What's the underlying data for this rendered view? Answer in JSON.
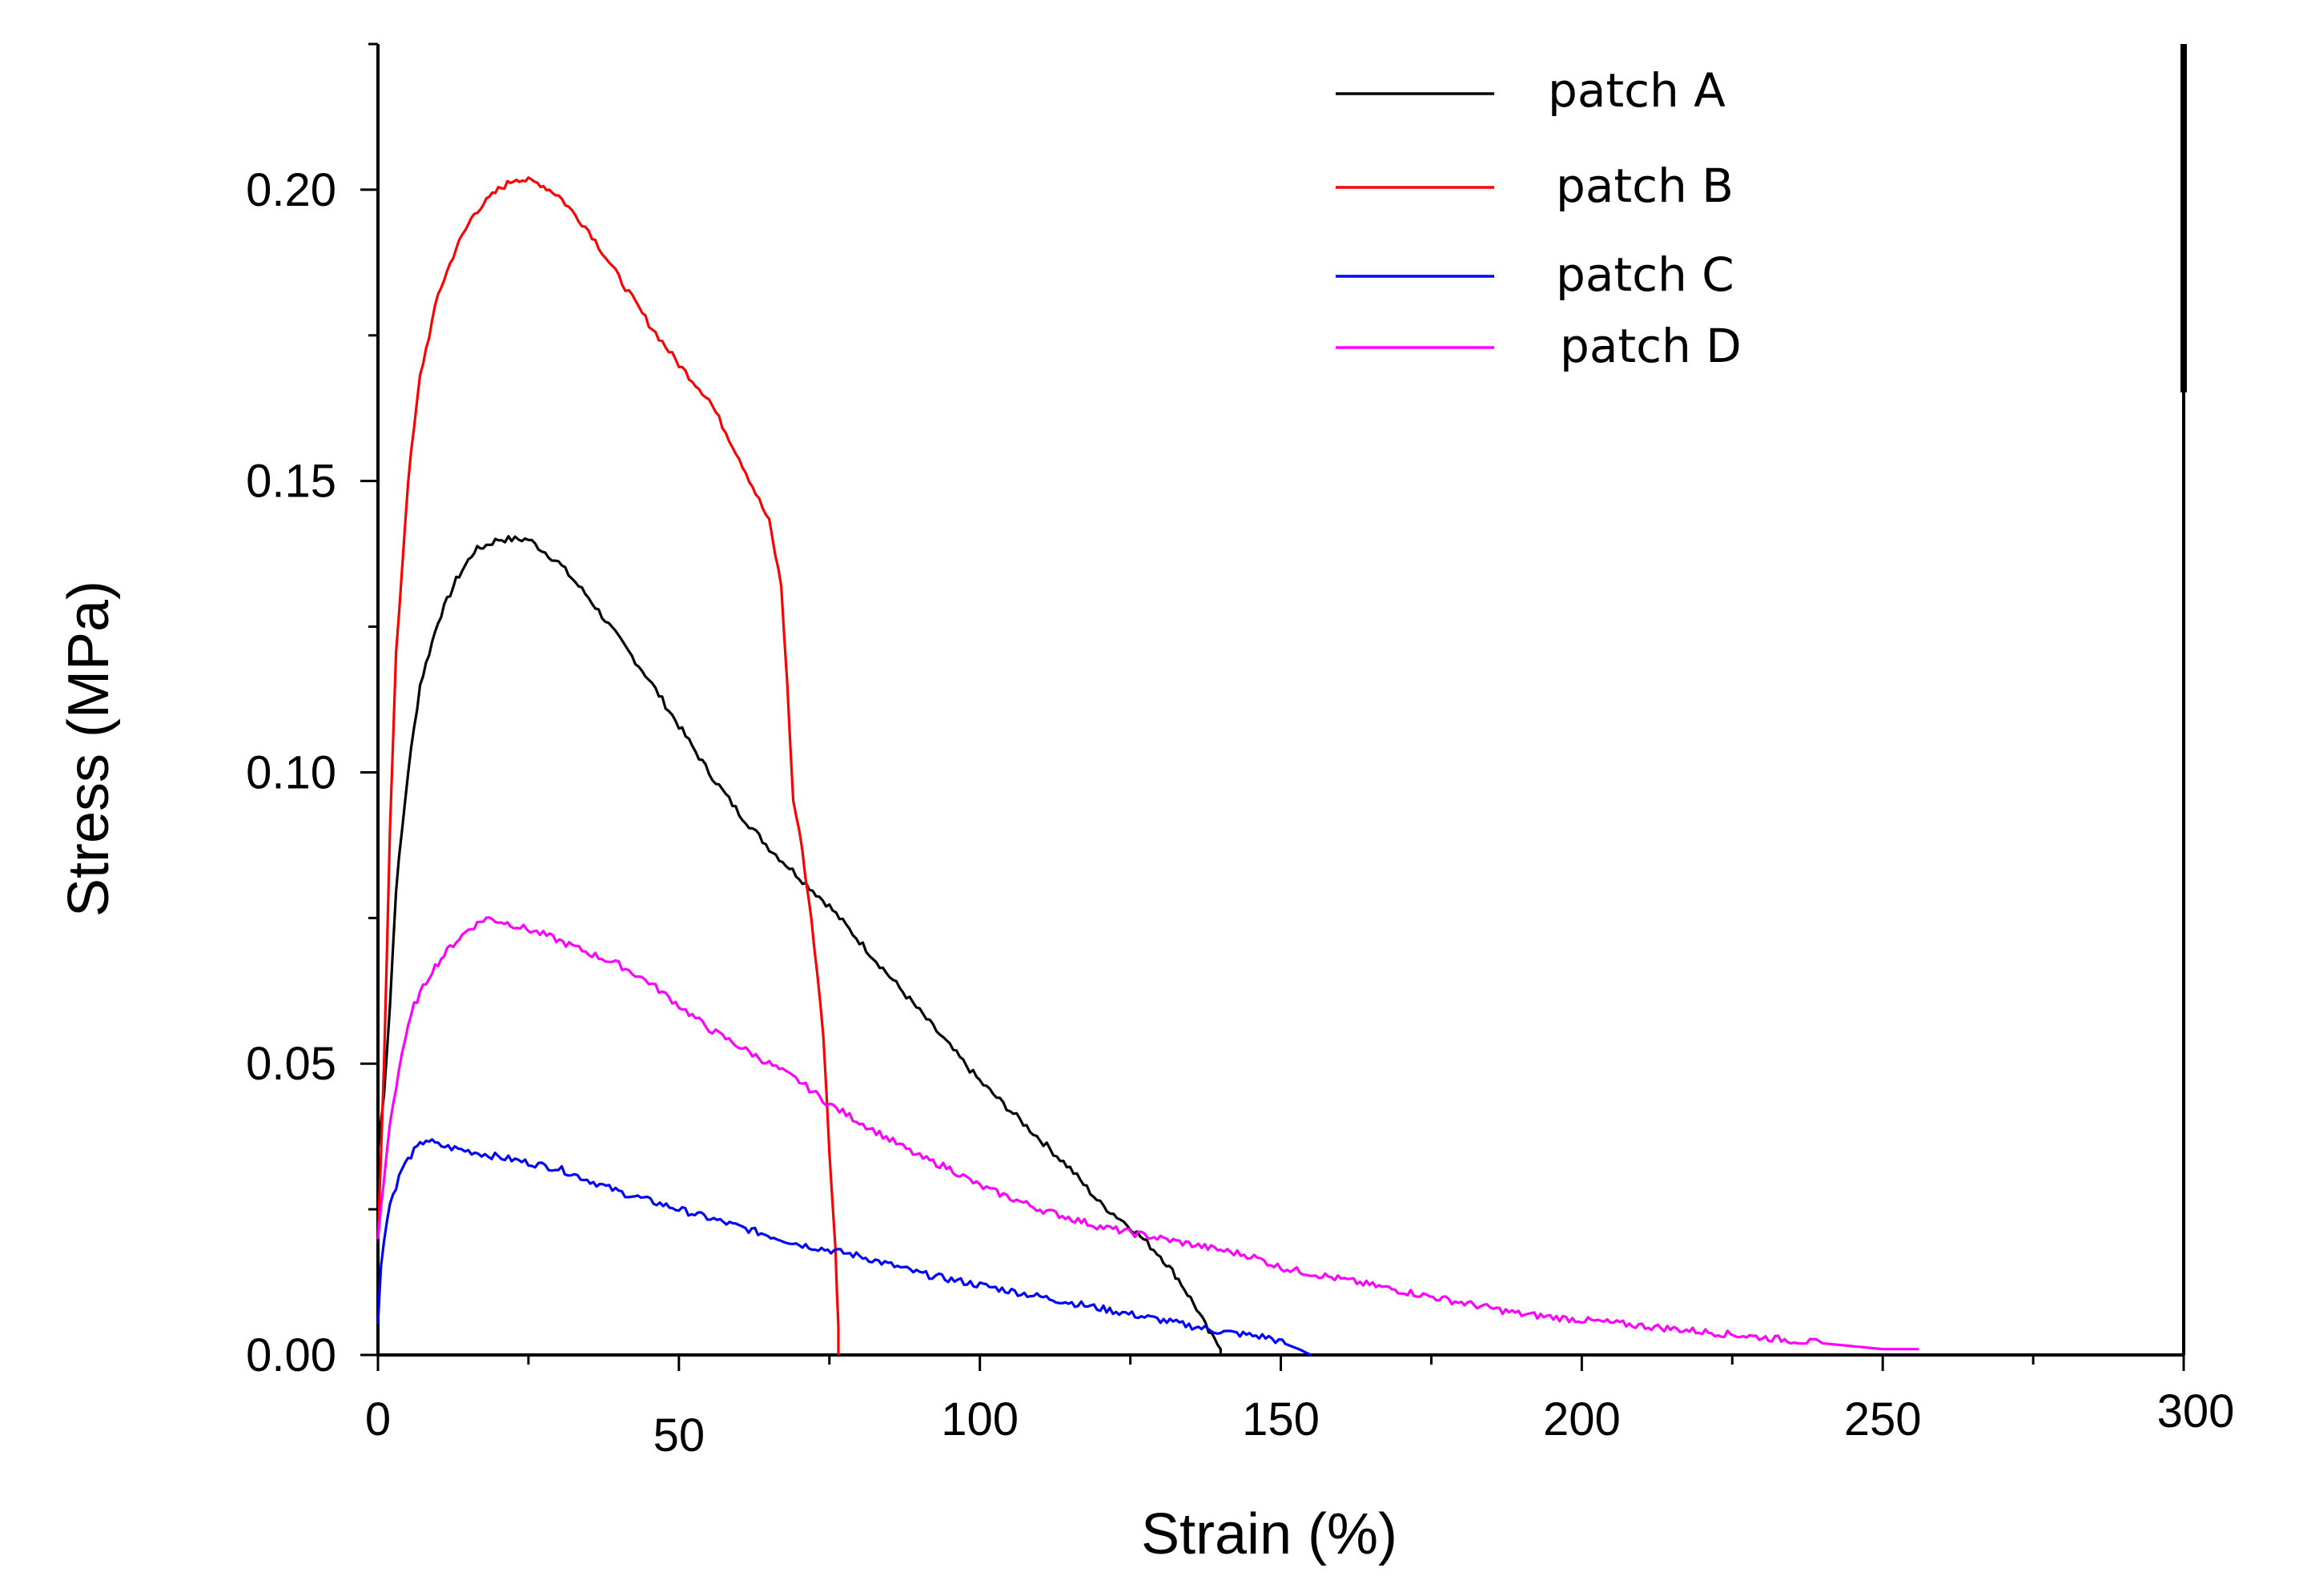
{
  "chart_data": {
    "type": "line",
    "title": "",
    "xlabel": "Strain (%)",
    "ylabel": "Stress (MPa)",
    "xlim": [
      0,
      300
    ],
    "ylim": [
      0,
      0.225
    ],
    "x_ticks": [
      0,
      50,
      100,
      150,
      200,
      250,
      300
    ],
    "x_tick_labels": [
      "0",
      "50",
      "100",
      "150",
      "200",
      "250",
      "300"
    ],
    "y_ticks": [
      0.0,
      0.05,
      0.1,
      0.15,
      0.2
    ],
    "y_tick_labels": [
      "0.00",
      "0.05",
      "0.10",
      "0.15",
      "0.20"
    ],
    "grid": false,
    "legend_position": "top-right",
    "series": [
      {
        "name": "patch A",
        "color": "#000000",
        "points": [
          [
            0,
            0.035
          ],
          [
            1,
            0.045
          ],
          [
            2,
            0.06
          ],
          [
            3,
            0.08
          ],
          [
            5,
            0.1
          ],
          [
            7,
            0.115
          ],
          [
            10,
            0.126
          ],
          [
            13,
            0.133
          ],
          [
            16,
            0.138
          ],
          [
            20,
            0.14
          ],
          [
            25,
            0.14
          ],
          [
            30,
            0.136
          ],
          [
            35,
            0.13
          ],
          [
            40,
            0.123
          ],
          [
            45,
            0.116
          ],
          [
            50,
            0.108
          ],
          [
            55,
            0.1
          ],
          [
            60,
            0.093
          ],
          [
            65,
            0.087
          ],
          [
            70,
            0.082
          ],
          [
            75,
            0.077
          ],
          [
            80,
            0.071
          ],
          [
            85,
            0.065
          ],
          [
            90,
            0.059
          ],
          [
            95,
            0.053
          ],
          [
            100,
            0.047
          ],
          [
            105,
            0.042
          ],
          [
            110,
            0.037
          ],
          [
            115,
            0.032
          ],
          [
            120,
            0.026
          ],
          [
            125,
            0.022
          ],
          [
            130,
            0.017
          ],
          [
            133,
            0.013
          ],
          [
            136,
            0.008
          ],
          [
            138,
            0.004
          ],
          [
            140,
            0.001
          ],
          [
            140,
            0.0
          ]
        ]
      },
      {
        "name": "patch B",
        "color": "#ff0000",
        "points": [
          [
            0,
            0.02
          ],
          [
            1,
            0.05
          ],
          [
            2,
            0.09
          ],
          [
            3,
            0.12
          ],
          [
            5,
            0.15
          ],
          [
            7,
            0.168
          ],
          [
            10,
            0.182
          ],
          [
            13,
            0.19
          ],
          [
            16,
            0.196
          ],
          [
            20,
            0.2
          ],
          [
            23,
            0.202
          ],
          [
            27,
            0.201
          ],
          [
            30,
            0.199
          ],
          [
            35,
            0.193
          ],
          [
            40,
            0.185
          ],
          [
            45,
            0.177
          ],
          [
            50,
            0.17
          ],
          [
            55,
            0.164
          ],
          [
            60,
            0.154
          ],
          [
            65,
            0.143
          ],
          [
            67,
            0.132
          ],
          [
            68,
            0.115
          ],
          [
            69,
            0.095
          ],
          [
            70,
            0.09
          ],
          [
            72,
            0.075
          ],
          [
            74,
            0.055
          ],
          [
            75,
            0.035
          ],
          [
            76,
            0.018
          ],
          [
            76.5,
            0.005
          ],
          [
            76.5,
            0.0
          ]
        ]
      },
      {
        "name": "patch C",
        "color": "#0000ff",
        "points": [
          [
            0,
            0.006
          ],
          [
            0.5,
            0.015
          ],
          [
            1,
            0.02
          ],
          [
            2,
            0.026
          ],
          [
            4,
            0.032
          ],
          [
            6,
            0.035
          ],
          [
            8,
            0.037
          ],
          [
            10,
            0.036
          ],
          [
            15,
            0.035
          ],
          [
            20,
            0.034
          ],
          [
            25,
            0.033
          ],
          [
            30,
            0.032
          ],
          [
            40,
            0.028
          ],
          [
            50,
            0.025
          ],
          [
            60,
            0.022
          ],
          [
            70,
            0.019
          ],
          [
            80,
            0.017
          ],
          [
            90,
            0.014
          ],
          [
            100,
            0.012
          ],
          [
            110,
            0.01
          ],
          [
            120,
            0.008
          ],
          [
            130,
            0.006
          ],
          [
            140,
            0.004
          ],
          [
            148,
            0.003
          ],
          [
            153,
            0.001
          ],
          [
            155,
            0.0
          ]
        ]
      },
      {
        "name": "patch D",
        "color": "#ff00ff",
        "points": [
          [
            0,
            0.02
          ],
          [
            1,
            0.03
          ],
          [
            2,
            0.04
          ],
          [
            4,
            0.052
          ],
          [
            6,
            0.06
          ],
          [
            9,
            0.066
          ],
          [
            12,
            0.07
          ],
          [
            15,
            0.073
          ],
          [
            18,
            0.075
          ],
          [
            22,
            0.074
          ],
          [
            28,
            0.072
          ],
          [
            35,
            0.069
          ],
          [
            40,
            0.067
          ],
          [
            45,
            0.064
          ],
          [
            50,
            0.06
          ],
          [
            55,
            0.056
          ],
          [
            60,
            0.053
          ],
          [
            65,
            0.05
          ],
          [
            70,
            0.047
          ],
          [
            75,
            0.043
          ],
          [
            80,
            0.04
          ],
          [
            85,
            0.037
          ],
          [
            90,
            0.034
          ],
          [
            95,
            0.032
          ],
          [
            100,
            0.029
          ],
          [
            105,
            0.027
          ],
          [
            110,
            0.025
          ],
          [
            120,
            0.022
          ],
          [
            130,
            0.02
          ],
          [
            140,
            0.018
          ],
          [
            145,
            0.017
          ],
          [
            150,
            0.015
          ],
          [
            160,
            0.013
          ],
          [
            170,
            0.011
          ],
          [
            180,
            0.009
          ],
          [
            190,
            0.007
          ],
          [
            200,
            0.006
          ],
          [
            210,
            0.005
          ],
          [
            220,
            0.004
          ],
          [
            230,
            0.003
          ],
          [
            240,
            0.002
          ],
          [
            250,
            0.001
          ],
          [
            256,
            0.001
          ]
        ]
      }
    ]
  }
}
